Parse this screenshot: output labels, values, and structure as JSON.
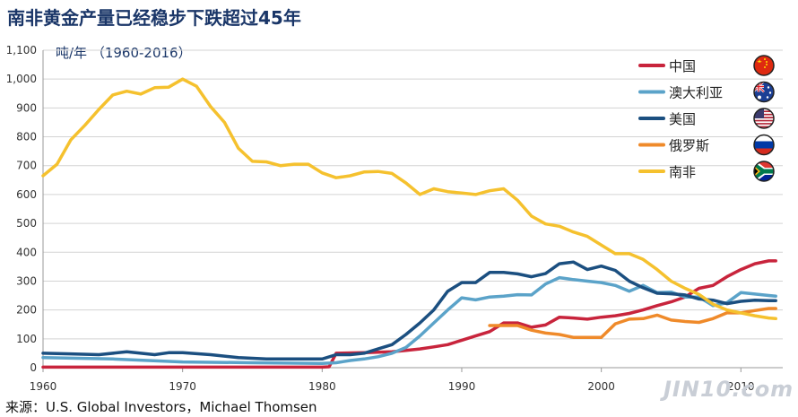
{
  "title": "南非黄金产量已经稳步下跌超过45年",
  "unit_label": "吨/年 （1960-2016）",
  "source": "来源：U.S. Global Investors，Michael Thomsen",
  "watermark": "JIN10.com",
  "chart_data": {
    "type": "line",
    "title": "南非黄金产量已经稳步下跌超过45年",
    "ylabel": "吨/年 （1960-2016）",
    "xlim": [
      1960,
      2013
    ],
    "ylim": [
      0,
      1100
    ],
    "x_ticks": [
      1960,
      1970,
      1980,
      1990,
      2000,
      2010
    ],
    "y_ticks": [
      0,
      100,
      200,
      300,
      400,
      500,
      600,
      700,
      800,
      900,
      1000,
      1100
    ],
    "y_tick_labels": [
      "0",
      "100",
      "200",
      "300",
      "400",
      "500",
      "600",
      "700",
      "800",
      "900",
      "1,000",
      "1,100"
    ],
    "grid": "horizontal",
    "legend": "top-right",
    "series": [
      {
        "name": "中国",
        "color": "#c8243c",
        "flag": "china-flag-icon",
        "points": [
          [
            1960,
            2
          ],
          [
            1965,
            2
          ],
          [
            1970,
            2
          ],
          [
            1975,
            2
          ],
          [
            1980,
            2
          ],
          [
            1980.5,
            3
          ],
          [
            1981,
            50
          ],
          [
            1983,
            52
          ],
          [
            1985,
            55
          ],
          [
            1986,
            60
          ],
          [
            1987,
            65
          ],
          [
            1988,
            72
          ],
          [
            1989,
            80
          ],
          [
            1990,
            95
          ],
          [
            1991,
            110
          ],
          [
            1992,
            125
          ],
          [
            1993,
            155
          ],
          [
            1994,
            155
          ],
          [
            1995,
            140
          ],
          [
            1996,
            148
          ],
          [
            1997,
            175
          ],
          [
            1998,
            172
          ],
          [
            1999,
            168
          ],
          [
            2000,
            175
          ],
          [
            2001,
            180
          ],
          [
            2002,
            188
          ],
          [
            2003,
            200
          ],
          [
            2004,
            215
          ],
          [
            2005,
            228
          ],
          [
            2006,
            245
          ],
          [
            2007,
            275
          ],
          [
            2008,
            285
          ],
          [
            2009,
            315
          ],
          [
            2010,
            340
          ],
          [
            2011,
            360
          ],
          [
            2012,
            370
          ],
          [
            2012.5,
            370
          ]
        ]
      },
      {
        "name": "澳大利亚",
        "color": "#5ba3c9",
        "flag": "australia-flag-icon",
        "points": [
          [
            1960,
            35
          ],
          [
            1965,
            30
          ],
          [
            1970,
            20
          ],
          [
            1975,
            17
          ],
          [
            1980,
            15
          ],
          [
            1981,
            17
          ],
          [
            1982,
            25
          ],
          [
            1983,
            30
          ],
          [
            1984,
            38
          ],
          [
            1985,
            50
          ],
          [
            1986,
            70
          ],
          [
            1987,
            110
          ],
          [
            1988,
            155
          ],
          [
            1989,
            200
          ],
          [
            1990,
            242
          ],
          [
            1991,
            235
          ],
          [
            1992,
            245
          ],
          [
            1993,
            248
          ],
          [
            1994,
            253
          ],
          [
            1995,
            252
          ],
          [
            1996,
            290
          ],
          [
            1997,
            312
          ],
          [
            1998,
            305
          ],
          [
            1999,
            300
          ],
          [
            2000,
            295
          ],
          [
            2001,
            285
          ],
          [
            2002,
            265
          ],
          [
            2003,
            285
          ],
          [
            2004,
            260
          ],
          [
            2005,
            262
          ],
          [
            2006,
            245
          ],
          [
            2007,
            245
          ],
          [
            2008,
            215
          ],
          [
            2009,
            225
          ],
          [
            2010,
            260
          ],
          [
            2011,
            255
          ],
          [
            2012,
            250
          ],
          [
            2012.5,
            248
          ]
        ]
      },
      {
        "name": "美国",
        "color": "#1b4f80",
        "flag": "usa-flag-icon",
        "points": [
          [
            1960,
            50
          ],
          [
            1962,
            48
          ],
          [
            1964,
            45
          ],
          [
            1966,
            55
          ],
          [
            1968,
            45
          ],
          [
            1969,
            52
          ],
          [
            1970,
            52
          ],
          [
            1972,
            45
          ],
          [
            1974,
            35
          ],
          [
            1976,
            30
          ],
          [
            1978,
            30
          ],
          [
            1980,
            30
          ],
          [
            1981,
            45
          ],
          [
            1982,
            45
          ],
          [
            1983,
            50
          ],
          [
            1984,
            65
          ],
          [
            1985,
            80
          ],
          [
            1986,
            115
          ],
          [
            1987,
            155
          ],
          [
            1988,
            200
          ],
          [
            1989,
            265
          ],
          [
            1990,
            295
          ],
          [
            1991,
            295
          ],
          [
            1992,
            330
          ],
          [
            1993,
            330
          ],
          [
            1994,
            325
          ],
          [
            1995,
            315
          ],
          [
            1996,
            326
          ],
          [
            1997,
            360
          ],
          [
            1998,
            366
          ],
          [
            1999,
            340
          ],
          [
            2000,
            352
          ],
          [
            2001,
            337
          ],
          [
            2002,
            300
          ],
          [
            2003,
            277
          ],
          [
            2004,
            258
          ],
          [
            2005,
            256
          ],
          [
            2006,
            252
          ],
          [
            2007,
            238
          ],
          [
            2008,
            234
          ],
          [
            2009,
            222
          ],
          [
            2010,
            230
          ],
          [
            2011,
            234
          ],
          [
            2012,
            232
          ],
          [
            2012.5,
            232
          ]
        ]
      },
      {
        "name": "俄罗斯",
        "color": "#ef8a2a",
        "flag": "russia-flag-icon",
        "points": [
          [
            1992,
            146
          ],
          [
            1993,
            146
          ],
          [
            1994,
            146
          ],
          [
            1995,
            130
          ],
          [
            1996,
            120
          ],
          [
            1997,
            115
          ],
          [
            1998,
            105
          ],
          [
            1999,
            105
          ],
          [
            2000,
            105
          ],
          [
            2001,
            152
          ],
          [
            2002,
            168
          ],
          [
            2003,
            170
          ],
          [
            2004,
            182
          ],
          [
            2005,
            165
          ],
          [
            2006,
            160
          ],
          [
            2007,
            157
          ],
          [
            2008,
            170
          ],
          [
            2009,
            190
          ],
          [
            2010,
            190
          ],
          [
            2011,
            198
          ],
          [
            2012,
            205
          ],
          [
            2012.5,
            205
          ]
        ]
      },
      {
        "name": "南非",
        "color": "#f5c12e",
        "flag": "south-africa-flag-icon",
        "points": [
          [
            1960,
            665
          ],
          [
            1961,
            705
          ],
          [
            1962,
            790
          ],
          [
            1963,
            840
          ],
          [
            1964,
            895
          ],
          [
            1965,
            945
          ],
          [
            1966,
            958
          ],
          [
            1967,
            948
          ],
          [
            1968,
            970
          ],
          [
            1969,
            972
          ],
          [
            1970,
            1000
          ],
          [
            1971,
            975
          ],
          [
            1972,
            905
          ],
          [
            1973,
            850
          ],
          [
            1974,
            760
          ],
          [
            1975,
            715
          ],
          [
            1976,
            713
          ],
          [
            1977,
            700
          ],
          [
            1978,
            705
          ],
          [
            1979,
            705
          ],
          [
            1980,
            675
          ],
          [
            1981,
            658
          ],
          [
            1982,
            665
          ],
          [
            1983,
            678
          ],
          [
            1984,
            680
          ],
          [
            1985,
            673
          ],
          [
            1986,
            640
          ],
          [
            1987,
            600
          ],
          [
            1988,
            620
          ],
          [
            1989,
            610
          ],
          [
            1990,
            605
          ],
          [
            1991,
            600
          ],
          [
            1992,
            613
          ],
          [
            1993,
            620
          ],
          [
            1994,
            580
          ],
          [
            1995,
            525
          ],
          [
            1996,
            498
          ],
          [
            1997,
            490
          ],
          [
            1998,
            470
          ],
          [
            1999,
            455
          ],
          [
            2000,
            425
          ],
          [
            2001,
            395
          ],
          [
            2002,
            395
          ],
          [
            2003,
            375
          ],
          [
            2004,
            340
          ],
          [
            2005,
            300
          ],
          [
            2006,
            275
          ],
          [
            2007,
            254
          ],
          [
            2008,
            220
          ],
          [
            2009,
            200
          ],
          [
            2010,
            190
          ],
          [
            2011,
            180
          ],
          [
            2012,
            172
          ],
          [
            2012.5,
            170
          ]
        ]
      }
    ]
  }
}
